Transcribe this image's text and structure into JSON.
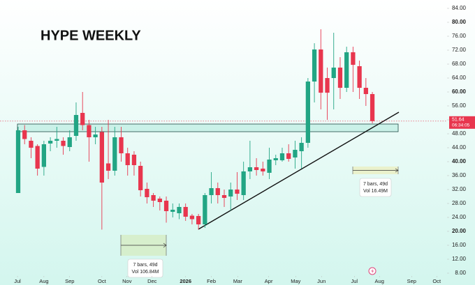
{
  "chart_data": {
    "type": "candlestick",
    "title": "HYPE WEEKLY",
    "x": [
      0,
      1,
      2,
      3,
      4,
      5,
      6,
      7,
      8,
      9,
      10,
      11,
      12,
      13,
      14,
      15,
      16,
      17,
      18,
      19,
      20,
      21,
      22,
      23,
      24,
      25,
      26,
      27,
      28,
      29,
      30,
      31,
      32,
      33,
      34,
      35,
      36,
      37,
      38,
      39,
      40,
      41,
      42,
      43,
      44,
      45,
      46,
      47,
      48,
      49,
      50,
      51,
      52,
      53,
      54,
      55
    ],
    "open": [
      31,
      49,
      46,
      44.5,
      38.5,
      45.2,
      46,
      46,
      44.2,
      47.4,
      54,
      50.5,
      47,
      48.5,
      39.5,
      37.4,
      47,
      42.4,
      42,
      38.8,
      32.2,
      30.4,
      29.4,
      28.8,
      25.6,
      25.2,
      27,
      24.5,
      24.4,
      22,
      30.4,
      32.4,
      30.4,
      30,
      32,
      30.4,
      37.2,
      38.4,
      38,
      36.8,
      40.4,
      40.4,
      42.4,
      41.2,
      43,
      45.4,
      63,
      72.2,
      64,
      64,
      67,
      61.2,
      71.4,
      67.4,
      61.2,
      59.4
    ],
    "high": [
      50,
      50.5,
      47,
      45,
      46,
      47,
      50,
      47,
      49,
      57,
      60,
      52,
      50,
      50,
      52,
      50,
      50,
      44,
      43,
      40,
      34,
      31,
      30,
      30,
      28,
      28,
      28,
      25,
      25,
      31,
      37,
      34,
      32,
      34,
      37,
      40,
      46,
      41,
      40,
      44,
      42,
      44,
      45,
      46,
      47,
      64,
      74,
      78,
      67,
      77,
      70,
      73,
      73,
      69,
      64,
      60
    ],
    "low": [
      31,
      45,
      41,
      36,
      36,
      43,
      44,
      42,
      43,
      46,
      49,
      40,
      45,
      20.5,
      35,
      36,
      40,
      36,
      36,
      30,
      28,
      27,
      26,
      22.5,
      24,
      23.5,
      23,
      22,
      20.5,
      21,
      28,
      28,
      27,
      26,
      29,
      29,
      35,
      36,
      36,
      35,
      39,
      40,
      40,
      38,
      38,
      44,
      57,
      55,
      52,
      55,
      58,
      60,
      60,
      58,
      56,
      51
    ],
    "close": [
      49,
      46.5,
      44,
      38,
      45,
      46,
      46.5,
      44.5,
      47,
      53.4,
      50.5,
      47,
      47.8,
      34,
      37.4,
      47,
      42.4,
      39,
      39,
      31.8,
      29.8,
      28.8,
      28.4,
      25.8,
      26.2,
      27,
      24.2,
      23.5,
      22,
      30.4,
      32.4,
      30.4,
      29.6,
      32,
      30.8,
      37.2,
      38.4,
      37.6,
      37.2,
      40.6,
      41,
      42.4,
      40.8,
      43.4,
      45.4,
      63,
      72.2,
      59.8,
      59.8,
      67,
      61.2,
      71.4,
      67.8,
      61.2,
      59.4,
      51.64
    ],
    "up_color": "#22a584",
    "down_color": "#e8364e",
    "xlim": [
      -2.82,
      66.6
    ],
    "xticks": [
      {
        "value": -0.1,
        "label": "Jul"
      },
      {
        "value": 4.0,
        "label": "Aug"
      },
      {
        "value": 8.0,
        "label": "Sep"
      },
      {
        "value": 13.0,
        "label": "Oct"
      },
      {
        "value": 16.9,
        "label": "Nov"
      },
      {
        "value": 20.8,
        "label": "Dec"
      },
      {
        "value": 26.0,
        "label": "2026"
      },
      {
        "value": 30.0,
        "label": "Feb"
      },
      {
        "value": 34.1,
        "label": "Mar"
      },
      {
        "value": 38.9,
        "label": "Apr"
      },
      {
        "value": 43.1,
        "label": "May"
      },
      {
        "value": 47.1,
        "label": "Jun"
      },
      {
        "value": 52.2,
        "label": "Jul"
      },
      {
        "value": 56.1,
        "label": "Aug"
      },
      {
        "value": 61.1,
        "label": "Sep"
      },
      {
        "value": 65.0,
        "label": "Oct"
      }
    ],
    "ylim": [
      4.6,
      86.4
    ],
    "yticks": [
      {
        "value": 8,
        "label": "8.00"
      },
      {
        "value": 12,
        "label": "12.00"
      },
      {
        "value": 16,
        "label": "16.00"
      },
      {
        "value": 20,
        "label": "20.00"
      },
      {
        "value": 24,
        "label": "24.00"
      },
      {
        "value": 28,
        "label": "28.00"
      },
      {
        "value": 32,
        "label": "32.00"
      },
      {
        "value": 36,
        "label": "36.00"
      },
      {
        "value": 40,
        "label": "40.00"
      },
      {
        "value": 44,
        "label": "44.00"
      },
      {
        "value": 48,
        "label": "48.00"
      },
      {
        "value": 52,
        "label": "52.00"
      },
      {
        "value": 56,
        "label": "56.00"
      },
      {
        "value": 60,
        "label": "60.00"
      },
      {
        "value": 64,
        "label": "64.00"
      },
      {
        "value": 68,
        "label": "68.00"
      },
      {
        "value": 72,
        "label": "72.00"
      },
      {
        "value": 76,
        "label": "76.00"
      },
      {
        "value": 80,
        "label": "80.00"
      },
      {
        "value": 84,
        "label": "84.00"
      }
    ],
    "last_price": 51.64,
    "countdown": "06:34:05",
    "annotations": [
      "7 bars, 49d",
      "Vol 106.84M",
      "7 bars, 49d",
      "Vol 16.49M"
    ]
  }
}
